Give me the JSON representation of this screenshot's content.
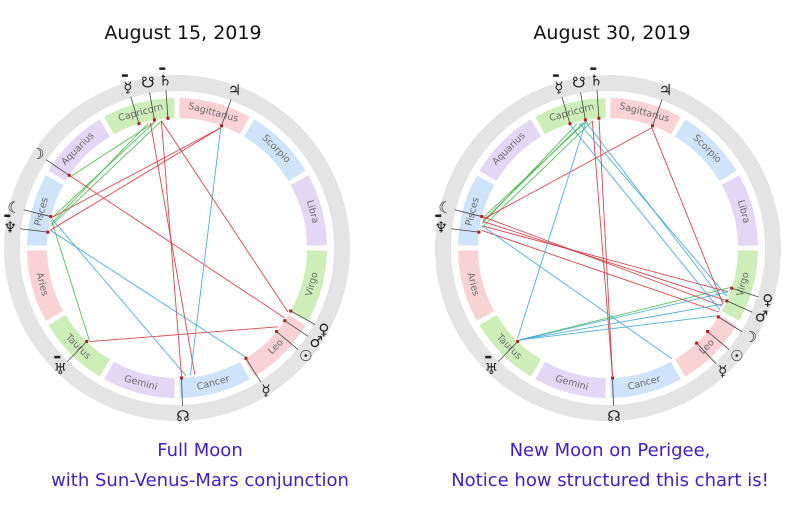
{
  "colors": {
    "caption": "#3a1fd0",
    "ring_outer": "#e4e4e4",
    "line_red": "#d8323a",
    "line_blue": "#3fa6d6",
    "line_green": "#47b84a",
    "fire": "#f9d3d4",
    "earth": "#cdeeb8",
    "air": "#e3d7f5",
    "water": "#cfe3fa"
  },
  "zodiac_signs": [
    {
      "name": "Aries",
      "element": "fire"
    },
    {
      "name": "Taurus",
      "element": "earth"
    },
    {
      "name": "Gemini",
      "element": "air"
    },
    {
      "name": "Cancer",
      "element": "water"
    },
    {
      "name": "Leo",
      "element": "fire"
    },
    {
      "name": "Virgo",
      "element": "earth"
    },
    {
      "name": "Libra",
      "element": "air"
    },
    {
      "name": "Scorpio",
      "element": "water"
    },
    {
      "name": "Sagittarius",
      "element": "fire"
    },
    {
      "name": "Capricorn",
      "element": "earth"
    },
    {
      "name": "Aquarius",
      "element": "air"
    },
    {
      "name": "Pisces",
      "element": "water"
    }
  ],
  "charts": [
    {
      "id": "left",
      "title": "August 15, 2019",
      "caption_lines": [
        "Full Moon",
        "with Sun-Venus-Mars conjunction"
      ],
      "planets": [
        {
          "glyph": "☿",
          "name": "pluto",
          "angle": 107,
          "retro": true
        },
        {
          "glyph": "☋",
          "name": "south-node",
          "angle": 100
        },
        {
          "glyph": "♄",
          "name": "saturn",
          "angle": 94,
          "retro": true
        },
        {
          "glyph": "♃",
          "name": "jupiter",
          "angle": 70
        },
        {
          "glyph": "☽",
          "name": "moon",
          "angle": 146
        },
        {
          "glyph": "☾",
          "name": "lilith",
          "angle": 166
        },
        {
          "glyph": "♆",
          "name": "neptune",
          "angle": 173,
          "retro": true
        },
        {
          "glyph": "♅",
          "name": "uranus",
          "angle": 226,
          "retro": true
        },
        {
          "glyph": "♂",
          "name": "mars",
          "angle": 326
        },
        {
          "glyph": "♀",
          "name": "venus",
          "angle": 331
        },
        {
          "glyph": "☉",
          "name": "sun",
          "angle": 320
        },
        {
          "glyph": "☿",
          "name": "mercury",
          "angle": 302
        },
        {
          "glyph": "☊",
          "name": "north-node",
          "angle": 272
        }
      ],
      "aspects": [
        {
          "a": 100,
          "b": 166,
          "c": "green"
        },
        {
          "a": 103,
          "b": 169,
          "c": "green"
        },
        {
          "a": 97,
          "b": 170,
          "c": "green"
        },
        {
          "a": 100,
          "b": 146,
          "c": "green"
        },
        {
          "a": 168,
          "b": 227,
          "c": "green"
        },
        {
          "a": 97,
          "b": 272,
          "c": "red"
        },
        {
          "a": 102,
          "b": 278,
          "c": "red"
        },
        {
          "a": 70,
          "b": 166,
          "c": "red"
        },
        {
          "a": 70,
          "b": 172,
          "c": "red"
        },
        {
          "a": 146,
          "b": 327,
          "c": "red"
        },
        {
          "a": 227,
          "b": 322,
          "c": "red"
        },
        {
          "a": 70,
          "b": 276,
          "c": "blue"
        },
        {
          "a": 167,
          "b": 274,
          "c": "blue"
        },
        {
          "a": 172,
          "b": 302,
          "c": "blue"
        },
        {
          "a": 97,
          "b": 330,
          "c": "red"
        }
      ]
    },
    {
      "id": "right",
      "title": "August 30, 2019",
      "caption_lines": [
        "New Moon on Perigee,",
        "Notice how structured this chart is!"
      ],
      "planets": [
        {
          "glyph": "☿",
          "name": "pluto",
          "angle": 107,
          "retro": true
        },
        {
          "glyph": "☋",
          "name": "south-node",
          "angle": 100
        },
        {
          "glyph": "♄",
          "name": "saturn",
          "angle": 94,
          "retro": true
        },
        {
          "glyph": "♃",
          "name": "jupiter",
          "angle": 70
        },
        {
          "glyph": "☾",
          "name": "lilith",
          "angle": 166
        },
        {
          "glyph": "♆",
          "name": "neptune",
          "angle": 173,
          "retro": true
        },
        {
          "glyph": "♅",
          "name": "uranus",
          "angle": 226,
          "retro": true
        },
        {
          "glyph": "♀",
          "name": "venus",
          "angle": 342
        },
        {
          "glyph": "♂",
          "name": "mars",
          "angle": 336
        },
        {
          "glyph": "☽",
          "name": "moon",
          "angle": 328
        },
        {
          "glyph": "☉",
          "name": "sun",
          "angle": 320
        },
        {
          "glyph": "☿",
          "name": "mercury",
          "angle": 313
        },
        {
          "glyph": "☊",
          "name": "north-node",
          "angle": 272
        }
      ],
      "aspects": [
        {
          "a": 100,
          "b": 166,
          "c": "green"
        },
        {
          "a": 104,
          "b": 169,
          "c": "green"
        },
        {
          "a": 97,
          "b": 171,
          "c": "green"
        },
        {
          "a": 101,
          "b": 168,
          "c": "green"
        },
        {
          "a": 342,
          "b": 226,
          "c": "green"
        },
        {
          "a": 97,
          "b": 272,
          "c": "red"
        },
        {
          "a": 70,
          "b": 167,
          "c": "red"
        },
        {
          "a": 166,
          "b": 333,
          "c": "red"
        },
        {
          "a": 168,
          "b": 336,
          "c": "red"
        },
        {
          "a": 170,
          "b": 340,
          "c": "red"
        },
        {
          "a": 172,
          "b": 330,
          "c": "red"
        },
        {
          "a": 100,
          "b": 335,
          "c": "blue"
        },
        {
          "a": 103,
          "b": 338,
          "c": "blue"
        },
        {
          "a": 107,
          "b": 331,
          "c": "blue"
        },
        {
          "a": 226,
          "b": 334,
          "c": "blue"
        },
        {
          "a": 226,
          "b": 340,
          "c": "blue"
        },
        {
          "a": 100,
          "b": 225,
          "c": "blue"
        },
        {
          "a": 70,
          "b": 334,
          "c": "red"
        },
        {
          "a": 94,
          "b": 272,
          "c": "red"
        },
        {
          "a": 170,
          "b": 300,
          "c": "blue"
        },
        {
          "a": 226,
          "b": 328,
          "c": "blue"
        }
      ]
    }
  ]
}
